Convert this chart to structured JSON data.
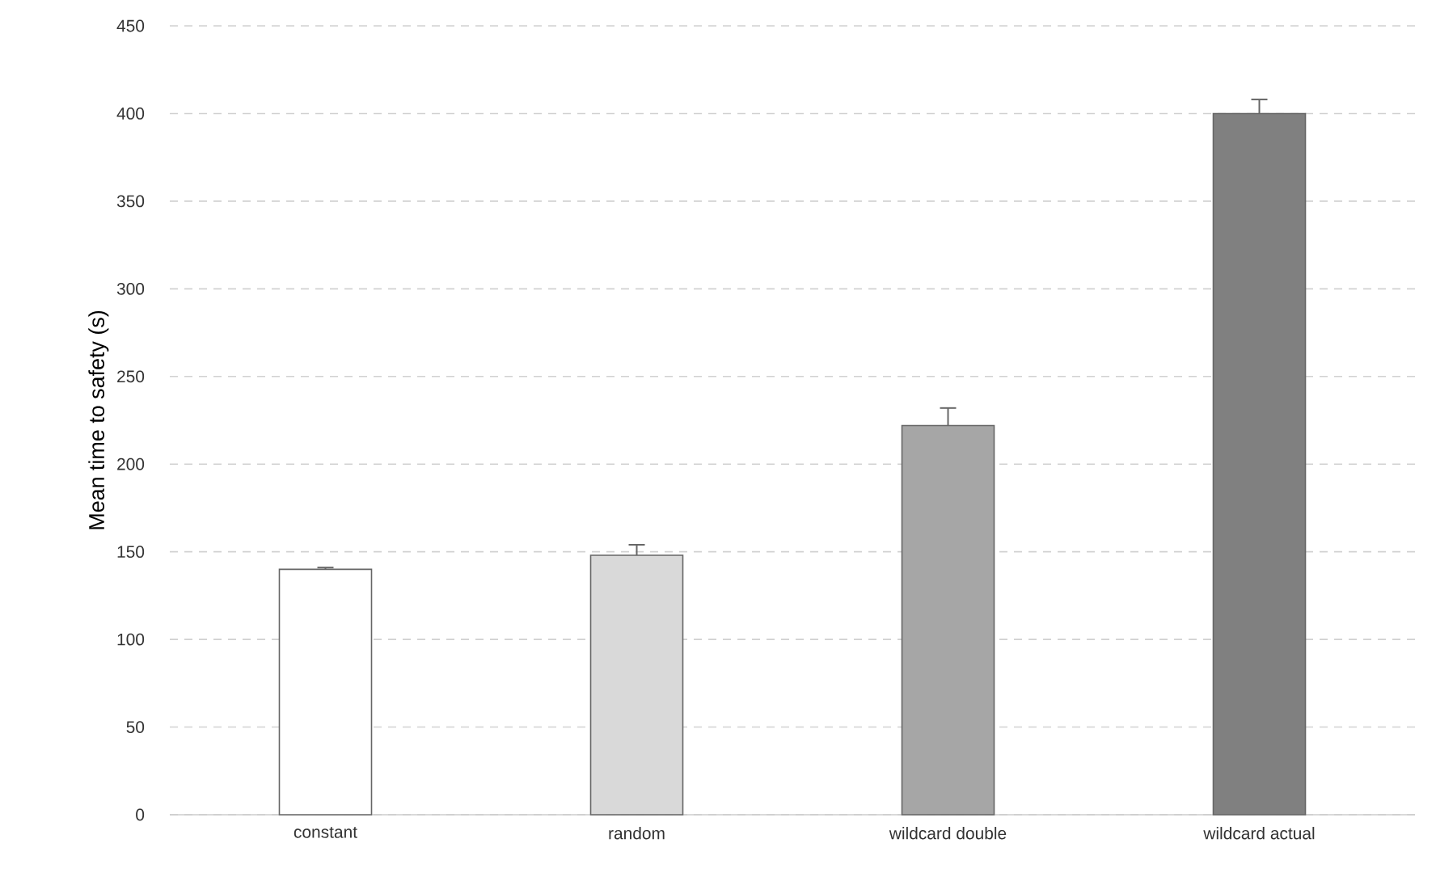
{
  "chart_data": {
    "type": "bar",
    "ylabel": "Mean time to safety (s)",
    "categories": [
      "constant",
      "random",
      "wildcard double",
      "wildcard actual"
    ],
    "values": [
      140,
      148,
      222,
      400
    ],
    "colors": [
      "#ffffff",
      "#d9d9d9",
      "#a6a6a6",
      "#808080"
    ],
    "errors": [
      [
        140,
        141
      ],
      [
        148,
        154
      ],
      [
        222,
        232
      ],
      [
        400,
        408
      ]
    ],
    "ylim": [
      0,
      450
    ],
    "yticks": [
      0,
      50,
      100,
      150,
      200,
      250,
      300,
      350,
      400,
      450
    ],
    "grid": "y"
  }
}
